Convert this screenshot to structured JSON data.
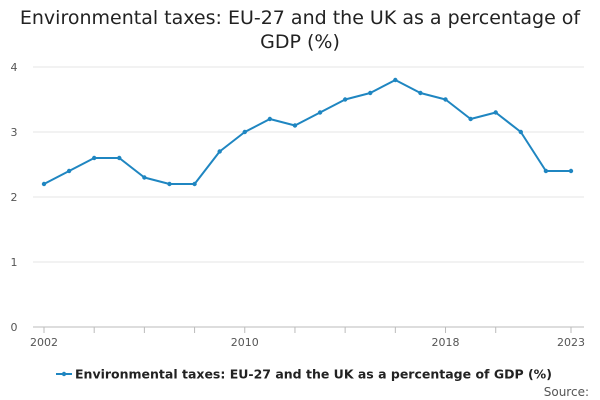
{
  "chart_data": {
    "type": "line",
    "title_lines": [
      "Environmental taxes: EU-27 and the UK as a percentage of",
      "GDP (%)"
    ],
    "x": [
      2002,
      2003,
      2004,
      2005,
      2006,
      2007,
      2008,
      2009,
      2010,
      2011,
      2012,
      2013,
      2014,
      2015,
      2016,
      2017,
      2018,
      2019,
      2020,
      2021,
      2022,
      2023
    ],
    "x_tick_labels": [
      {
        "x": 2002,
        "label": "2002"
      },
      {
        "x": 2010,
        "label": "2010"
      },
      {
        "x": 2018,
        "label": "2018"
      },
      {
        "x": 2023,
        "label": "2023"
      }
    ],
    "x_minor_ticks": [
      2004,
      2006,
      2008,
      2012,
      2014,
      2016,
      2020
    ],
    "y_ticks": [
      {
        "value": 0,
        "label": "0"
      },
      {
        "value": 1,
        "label": "1"
      },
      {
        "value": 2,
        "label": "2"
      },
      {
        "value": 3,
        "label": "3"
      },
      {
        "value": 4,
        "label": "4"
      }
    ],
    "ylim": [
      0,
      4
    ],
    "series": [
      {
        "name": "Environmental taxes: EU-27 and the UK as a percentage of GDP (%)",
        "color": "#1f86c1",
        "values": [
          2.2,
          2.4,
          2.6,
          2.6,
          2.3,
          2.2,
          2.2,
          2.7,
          3.0,
          3.2,
          3.1,
          3.3,
          3.5,
          3.6,
          3.8,
          3.6,
          3.5,
          3.2,
          3.3,
          3.0,
          2.4,
          2.4
        ]
      }
    ],
    "legend_position": "bottom",
    "grid": true,
    "source_label": "Source:"
  }
}
